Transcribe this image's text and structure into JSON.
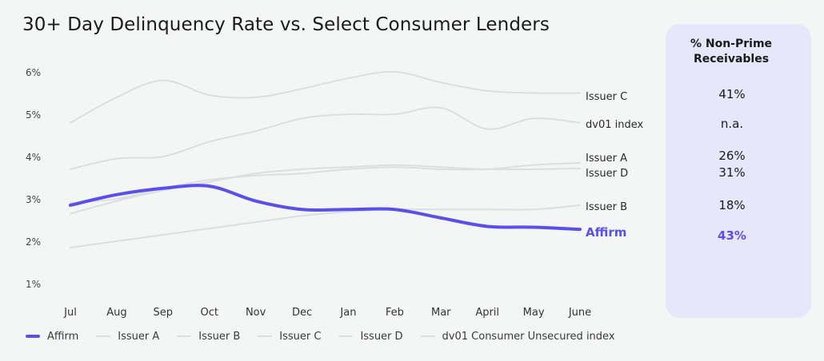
{
  "title": "30+ Day Delinquency Rate vs. Select Consumer Lenders",
  "panel": {
    "title_line1": "% Non-Prime",
    "title_line2": "Receivables",
    "values": [
      {
        "label": "Issuer C",
        "value": "41%",
        "highlight": false
      },
      {
        "label": "dv01 index",
        "value": "n.a.",
        "highlight": false
      },
      {
        "label": "Issuer A",
        "value": "26%",
        "highlight": false
      },
      {
        "label": "Issuer D",
        "value": "31%",
        "highlight": false
      },
      {
        "label": "Issuer B",
        "value": "18%",
        "highlight": false
      },
      {
        "label": "Affirm",
        "value": "43%",
        "highlight": true
      }
    ]
  },
  "legend": [
    "Affirm",
    "Issuer A",
    "Issuer B",
    "Issuer C",
    "Issuer D",
    "dv01 Consumer Unsecured index"
  ],
  "colors": {
    "affirm": "#5a4fe8",
    "others": "#dcdfe2",
    "panel": "#e6e7fb"
  },
  "chart_data": {
    "type": "line",
    "title": "30+ Day Delinquency Rate vs. Select Consumer Lenders",
    "x": [
      "Jul",
      "Aug",
      "Sep",
      "Oct",
      "Nov",
      "Dec",
      "Jan",
      "Feb",
      "Mar",
      "April",
      "May",
      "June"
    ],
    "y_ticks": [
      "6%",
      "5%",
      "4%",
      "3%",
      "2%",
      "1%"
    ],
    "ylim": [
      1,
      6
    ],
    "grid": false,
    "legend_position": "bottom",
    "series": [
      {
        "name": "Issuer C",
        "end_label": "Issuer C",
        "values": [
          4.8,
          5.4,
          5.8,
          5.45,
          5.4,
          5.6,
          5.85,
          6.0,
          5.75,
          5.55,
          5.5,
          5.5
        ]
      },
      {
        "name": "dv01 Consumer Unsecured index",
        "end_label": "dv01 index",
        "values": [
          3.7,
          3.95,
          4.0,
          4.35,
          4.6,
          4.9,
          5.0,
          5.0,
          5.15,
          4.65,
          4.9,
          4.8
        ]
      },
      {
        "name": "Issuer A",
        "end_label": "Issuer A",
        "values": [
          2.9,
          3.0,
          3.25,
          3.45,
          3.55,
          3.6,
          3.7,
          3.75,
          3.7,
          3.7,
          3.8,
          3.85
        ]
      },
      {
        "name": "Issuer D",
        "end_label": "Issuer D",
        "values": [
          2.65,
          2.95,
          3.2,
          3.4,
          3.6,
          3.7,
          3.75,
          3.8,
          3.75,
          3.7,
          3.7,
          3.72
        ]
      },
      {
        "name": "Issuer B",
        "end_label": "Issuer B",
        "values": [
          1.85,
          2.0,
          2.15,
          2.3,
          2.45,
          2.6,
          2.7,
          2.75,
          2.75,
          2.75,
          2.75,
          2.85
        ]
      },
      {
        "name": "Affirm",
        "end_label": "Affirm",
        "values": [
          2.85,
          3.1,
          3.25,
          3.3,
          2.95,
          2.75,
          2.75,
          2.75,
          2.55,
          2.35,
          2.33,
          2.28
        ]
      }
    ]
  }
}
